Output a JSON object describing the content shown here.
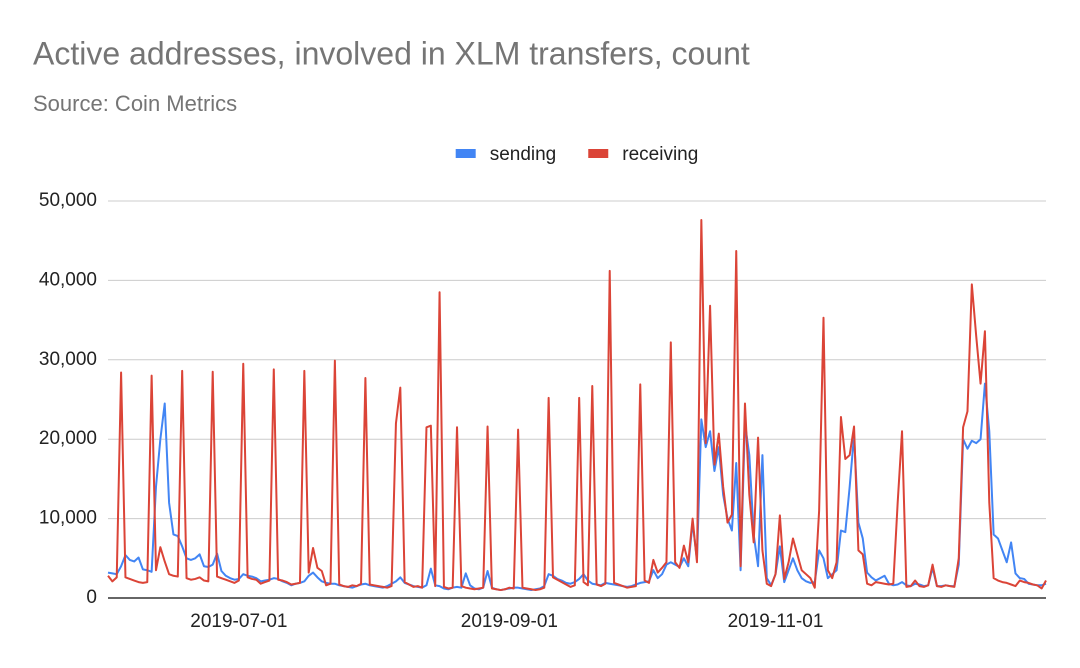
{
  "chart_data": {
    "type": "line",
    "title": "Active addresses, involved in XLM transfers, count",
    "subtitle": "Source: Coin Metrics",
    "legend": "top",
    "grid": true,
    "x": [
      "2019-06-01",
      "2019-06-02",
      "2019-06-03",
      "2019-06-04",
      "2019-06-05",
      "2019-06-06",
      "2019-06-07",
      "2019-06-08",
      "2019-06-09",
      "2019-06-10",
      "2019-06-11",
      "2019-06-12",
      "2019-06-13",
      "2019-06-14",
      "2019-06-15",
      "2019-06-16",
      "2019-06-17",
      "2019-06-18",
      "2019-06-19",
      "2019-06-20",
      "2019-06-21",
      "2019-06-22",
      "2019-06-23",
      "2019-06-24",
      "2019-06-25",
      "2019-06-26",
      "2019-06-27",
      "2019-06-28",
      "2019-06-29",
      "2019-06-30",
      "2019-07-01",
      "2019-07-02",
      "2019-07-03",
      "2019-07-04",
      "2019-07-05",
      "2019-07-06",
      "2019-07-07",
      "2019-07-08",
      "2019-07-09",
      "2019-07-10",
      "2019-07-11",
      "2019-07-12",
      "2019-07-13",
      "2019-07-14",
      "2019-07-15",
      "2019-07-16",
      "2019-07-17",
      "2019-07-18",
      "2019-07-19",
      "2019-07-20",
      "2019-07-21",
      "2019-07-22",
      "2019-07-23",
      "2019-07-24",
      "2019-07-25",
      "2019-07-26",
      "2019-07-27",
      "2019-07-28",
      "2019-07-29",
      "2019-07-30",
      "2019-07-31",
      "2019-08-01",
      "2019-08-02",
      "2019-08-03",
      "2019-08-04",
      "2019-08-05",
      "2019-08-06",
      "2019-08-07",
      "2019-08-08",
      "2019-08-09",
      "2019-08-10",
      "2019-08-11",
      "2019-08-12",
      "2019-08-13",
      "2019-08-14",
      "2019-08-15",
      "2019-08-16",
      "2019-08-17",
      "2019-08-18",
      "2019-08-19",
      "2019-08-20",
      "2019-08-21",
      "2019-08-22",
      "2019-08-23",
      "2019-08-24",
      "2019-08-25",
      "2019-08-26",
      "2019-08-27",
      "2019-08-28",
      "2019-08-29",
      "2019-08-30",
      "2019-08-31",
      "2019-09-01",
      "2019-09-02",
      "2019-09-03",
      "2019-09-04",
      "2019-09-05",
      "2019-09-06",
      "2019-09-07",
      "2019-09-08",
      "2019-09-09",
      "2019-09-10",
      "2019-09-11",
      "2019-09-12",
      "2019-09-13",
      "2019-09-14",
      "2019-09-15",
      "2019-09-16",
      "2019-09-17",
      "2019-09-18",
      "2019-09-19",
      "2019-09-20",
      "2019-09-21",
      "2019-09-22",
      "2019-09-23",
      "2019-09-24",
      "2019-09-25",
      "2019-09-26",
      "2019-09-27",
      "2019-09-28",
      "2019-09-29",
      "2019-09-30",
      "2019-10-01",
      "2019-10-02",
      "2019-10-03",
      "2019-10-04",
      "2019-10-05",
      "2019-10-06",
      "2019-10-07",
      "2019-10-08",
      "2019-10-09",
      "2019-10-10",
      "2019-10-11",
      "2019-10-12",
      "2019-10-13",
      "2019-10-14",
      "2019-10-15",
      "2019-10-16",
      "2019-10-17",
      "2019-10-18",
      "2019-10-19",
      "2019-10-20",
      "2019-10-21",
      "2019-10-22",
      "2019-10-23",
      "2019-10-24",
      "2019-10-25",
      "2019-10-26",
      "2019-10-27",
      "2019-10-28",
      "2019-10-29",
      "2019-10-30",
      "2019-10-31",
      "2019-11-01",
      "2019-11-02",
      "2019-11-03",
      "2019-11-04",
      "2019-11-05",
      "2019-11-06",
      "2019-11-07",
      "2019-11-08",
      "2019-11-09",
      "2019-11-10",
      "2019-11-11",
      "2019-11-12",
      "2019-11-13",
      "2019-11-14",
      "2019-11-15",
      "2019-11-16",
      "2019-11-17",
      "2019-11-18",
      "2019-11-19",
      "2019-11-20",
      "2019-11-21",
      "2019-11-22",
      "2019-11-23",
      "2019-11-24",
      "2019-11-25",
      "2019-11-26",
      "2019-11-27",
      "2019-11-28",
      "2019-11-29",
      "2019-11-30",
      "2019-12-01",
      "2019-12-02",
      "2019-12-03",
      "2019-12-04",
      "2019-12-05",
      "2019-12-06",
      "2019-12-07",
      "2019-12-08",
      "2019-12-09",
      "2019-12-10",
      "2019-12-11",
      "2019-12-12",
      "2019-12-13",
      "2019-12-14",
      "2019-12-15",
      "2019-12-16",
      "2019-12-17",
      "2019-12-18",
      "2019-12-19",
      "2019-12-20",
      "2019-12-21",
      "2019-12-22",
      "2019-12-23",
      "2019-12-24",
      "2019-12-25",
      "2019-12-26",
      "2019-12-27",
      "2019-12-28",
      "2019-12-29",
      "2019-12-30",
      "2019-12-31",
      "2020-01-01",
      "2020-01-02"
    ],
    "series": [
      {
        "name": "sending",
        "color": "#4285f4",
        "values": [
          3200,
          3100,
          3000,
          4000,
          5400,
          4800,
          4600,
          5100,
          3600,
          3500,
          3300,
          14000,
          20000,
          24500,
          12000,
          8000,
          7800,
          6500,
          5000,
          4800,
          5000,
          5500,
          4000,
          3900,
          4200,
          5600,
          3400,
          2800,
          2500,
          2300,
          2400,
          3000,
          2800,
          2700,
          2500,
          2100,
          2200,
          2300,
          2500,
          2400,
          2100,
          1900,
          1600,
          1800,
          1900,
          2100,
          2800,
          3200,
          2600,
          2100,
          1900,
          1800,
          1800,
          1600,
          1500,
          1400,
          1300,
          1500,
          1700,
          1800,
          1600,
          1500,
          1400,
          1300,
          1500,
          1800,
          2100,
          2600,
          1900,
          1700,
          1500,
          1400,
          1300,
          1600,
          3700,
          1600,
          1500,
          1200,
          1100,
          1300,
          1400,
          1300,
          3100,
          1600,
          1200,
          1100,
          1300,
          3400,
          1300,
          1100,
          1000,
          1100,
          1200,
          1300,
          1300,
          1200,
          1100,
          1000,
          1100,
          1200,
          1500,
          3000,
          2800,
          2400,
          2200,
          1900,
          1800,
          2000,
          2400,
          3000,
          2200,
          1800,
          1700,
          1600,
          1900,
          1800,
          1700,
          1600,
          1500,
          1400,
          1500,
          1700,
          1900,
          2000,
          2100,
          3500,
          2500,
          3000,
          4200,
          4500,
          4200,
          3900,
          5000,
          4000,
          9500,
          4800,
          22500,
          19000,
          21000,
          16000,
          19000,
          13000,
          10000,
          8500,
          17000,
          3500,
          22000,
          18000,
          8000,
          4000,
          18000,
          2500,
          1600,
          3000,
          6500,
          2000,
          3500,
          5000,
          3500,
          2500,
          2100,
          1900,
          2000,
          6000,
          5000,
          2500,
          3000,
          3500,
          8500,
          8300,
          14000,
          20500,
          9500,
          7500,
          3200,
          2600,
          2200,
          2500,
          2800,
          1800,
          1600,
          1700,
          2000,
          1600,
          1500,
          1800,
          1700,
          1500,
          1600,
          3800,
          1500,
          1500,
          1600,
          1500,
          1500,
          4200,
          20000,
          18800,
          19800,
          19500,
          20000,
          27000,
          21000,
          8000,
          7500,
          6000,
          4500,
          7000,
          3100,
          2500,
          2400,
          1800,
          1700,
          1600,
          1600,
          1800
        ]
      },
      {
        "name": "receiving",
        "color": "#db4437",
        "values": [
          2800,
          2100,
          2600,
          28400,
          2600,
          2400,
          2200,
          2000,
          1900,
          2000,
          28000,
          3500,
          6400,
          4600,
          3000,
          2800,
          2700,
          28600,
          2500,
          2300,
          2400,
          2600,
          2200,
          2100,
          28500,
          2700,
          2500,
          2300,
          2100,
          1900,
          2200,
          29500,
          2600,
          2400,
          2300,
          1800,
          2000,
          2200,
          28800,
          2300,
          2200,
          2000,
          1700,
          1800,
          1900,
          28600,
          3200,
          6300,
          3800,
          3400,
          1600,
          1800,
          29900,
          1700,
          1500,
          1400,
          1600,
          1500,
          1800,
          27700,
          1700,
          1600,
          1500,
          1400,
          1300,
          1500,
          22000,
          26500,
          2000,
          1700,
          1400,
          1500,
          1300,
          21500,
          21700,
          1500,
          38500,
          1400,
          1200,
          1300,
          21500,
          1500,
          1300,
          1200,
          1100,
          1200,
          1300,
          21600,
          1200,
          1100,
          1000,
          1100,
          1300,
          1200,
          21200,
          1300,
          1200,
          1100,
          1000,
          1100,
          1300,
          25200,
          2600,
          2300,
          2000,
          1700,
          1400,
          1600,
          25200,
          2000,
          1600,
          26700,
          1700,
          1500,
          1800,
          41200,
          1900,
          1700,
          1500,
          1300,
          1400,
          1500,
          26900,
          2200,
          1900,
          4800,
          3200,
          3800,
          4500,
          32200,
          4500,
          3800,
          6600,
          4500,
          10000,
          4500,
          47600,
          19500,
          36800,
          16800,
          20700,
          14000,
          9500,
          10500,
          43700,
          4000,
          24500,
          13000,
          7000,
          20200,
          6000,
          1800,
          1500,
          3000,
          10400,
          2400,
          4500,
          7500,
          5500,
          3500,
          3000,
          2500,
          1300,
          11000,
          35300,
          3500,
          2500,
          4500,
          22800,
          17500,
          18000,
          21600,
          6000,
          5500,
          1800,
          1600,
          2000,
          1900,
          1800,
          1700,
          1800,
          12000,
          21000,
          1400,
          1500,
          2200,
          1500,
          1400,
          1600,
          4200,
          1500,
          1400,
          1600,
          1500,
          1400,
          5000,
          21500,
          23500,
          39500,
          33000,
          27000,
          33600,
          12000,
          2500,
          2200,
          2000,
          1900,
          1700,
          1500,
          2200,
          2000,
          1900,
          1700,
          1600,
          1200,
          2200
        ]
      }
    ],
    "xlim": [
      "2019-06-01",
      "2020-01-02"
    ],
    "xticks": [
      "2019-07-01",
      "2019-09-01",
      "2019-11-01"
    ],
    "ylim": [
      0,
      50000
    ],
    "yticks": [
      0,
      {
        "value": 10000,
        "label": "10,000"
      },
      {
        "value": 20000,
        "label": "20,000"
      },
      {
        "value": 30000,
        "label": "30,000"
      },
      {
        "value": 40000,
        "label": "40,000"
      },
      {
        "value": 50000,
        "label": "50,000"
      }
    ]
  }
}
